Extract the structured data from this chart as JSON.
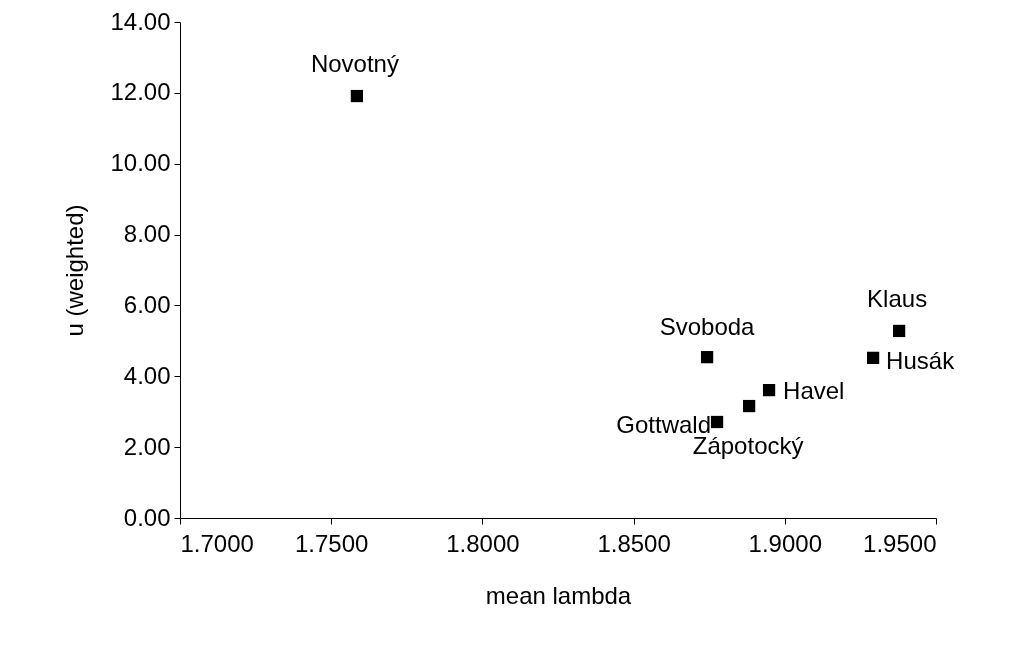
{
  "chart_data": {
    "type": "scatter",
    "xlabel": "mean lambda",
    "ylabel": "u (weighted)",
    "x": [
      1.7585,
      1.8743,
      1.9378,
      1.9292,
      1.8948,
      1.8882,
      1.8776
    ],
    "values": [
      11.91,
      4.54,
      5.28,
      4.52,
      3.61,
      3.16,
      2.71
    ],
    "color": "#000000",
    "marker": "square",
    "grid": false,
    "xlim": [
      1.7,
      1.95
    ],
    "xticks": [
      {
        "value": 1.7,
        "label": "1.7000"
      },
      {
        "value": 1.75,
        "label": "1.7500"
      },
      {
        "value": 1.8,
        "label": "1.8000"
      },
      {
        "value": 1.85,
        "label": "1.8500"
      },
      {
        "value": 1.9,
        "label": "1.9000"
      },
      {
        "value": 1.95,
        "label": "1.9500"
      }
    ],
    "ylim": [
      0,
      14
    ],
    "yticks": [
      {
        "value": 0,
        "label": "0.00"
      },
      {
        "value": 2,
        "label": "2.00"
      },
      {
        "value": 4,
        "label": "4.00"
      },
      {
        "value": 6,
        "label": "6.00"
      },
      {
        "value": 8,
        "label": "8.00"
      },
      {
        "value": 10,
        "label": "10.00"
      },
      {
        "value": 12,
        "label": "12.00"
      },
      {
        "value": 14,
        "label": "14.00"
      }
    ],
    "annotations": [
      {
        "text": "Novotný",
        "x": 1.7585,
        "y": 11.91
      },
      {
        "text": "Svoboda",
        "x": 1.8743,
        "y": 4.54
      },
      {
        "text": "Klaus",
        "x": 1.9378,
        "y": 5.28
      },
      {
        "text": "Husák",
        "x": 1.9292,
        "y": 4.52
      },
      {
        "text": "Havel",
        "x": 1.8948,
        "y": 3.61
      },
      {
        "text": "Zápotocký",
        "x": 1.8882,
        "y": 3.16
      },
      {
        "text": "Gottwald",
        "x": 1.8776,
        "y": 2.71
      }
    ]
  }
}
